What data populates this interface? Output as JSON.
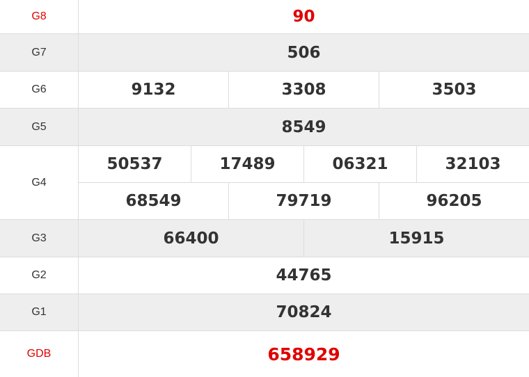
{
  "prizes": [
    {
      "label": "G8",
      "numbers": [
        "90"
      ]
    },
    {
      "label": "G7",
      "numbers": [
        "506"
      ]
    },
    {
      "label": "G6",
      "numbers": [
        "9132",
        "3308",
        "3503"
      ]
    },
    {
      "label": "G5",
      "numbers": [
        "8549"
      ]
    },
    {
      "label": "G4",
      "numbers": [
        "50537",
        "17489",
        "06321",
        "32103",
        "68549",
        "79719",
        "96205"
      ]
    },
    {
      "label": "G3",
      "numbers": [
        "66400",
        "15915"
      ]
    },
    {
      "label": "G2",
      "numbers": [
        "44765"
      ]
    },
    {
      "label": "G1",
      "numbers": [
        "70824"
      ]
    },
    {
      "label": "GDB",
      "numbers": [
        "658929"
      ]
    }
  ],
  "colors": {
    "highlight": "#e00000",
    "text": "#333333",
    "alt_row": "#eeeeee",
    "border": "#dcdcdc"
  }
}
